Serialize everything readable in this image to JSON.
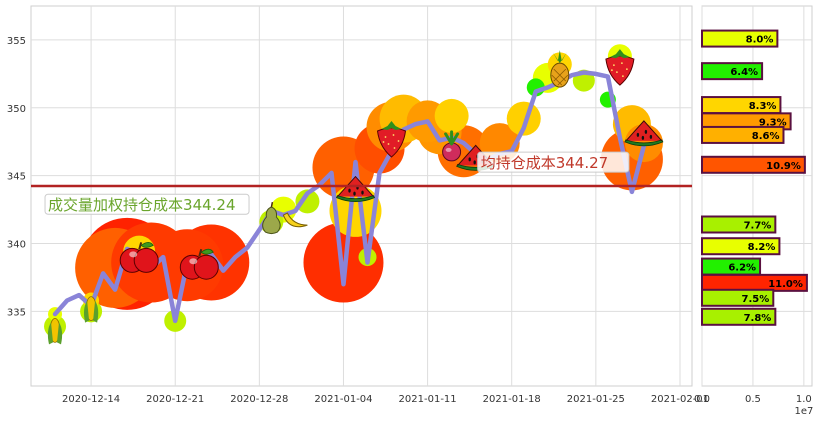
{
  "chart_data": [
    {
      "type": "line",
      "x_ticks": [
        "2020-12-14",
        "2020-12-21",
        "2020-12-28",
        "2021-01-04",
        "2021-01-11",
        "2021-01-18",
        "2021-01-25",
        "2021-02-01"
      ],
      "y_ticks": [
        335,
        340,
        345,
        350,
        355
      ],
      "xlim": [
        "2020-12-09",
        "2021-02-02"
      ],
      "ylim": [
        329.5,
        357.5
      ],
      "grid": true,
      "series": [
        {
          "color": "#8a84d8",
          "points": [
            [
              "2020-12-11",
              334.8
            ],
            [
              "2020-12-12",
              335.8
            ],
            [
              "2020-12-13",
              336.2
            ],
            [
              "2020-12-14",
              335.4
            ],
            [
              "2020-12-15",
              337.8
            ],
            [
              "2020-12-16",
              336.6
            ],
            [
              "2020-12-17",
              339.6
            ],
            [
              "2020-12-18",
              339.2
            ],
            [
              "2020-12-19",
              338.2
            ],
            [
              "2020-12-20",
              339.0
            ],
            [
              "2020-12-21",
              334.3
            ],
            [
              "2020-12-22",
              338.6
            ],
            [
              "2020-12-23",
              338.4
            ],
            [
              "2020-12-24",
              339.2
            ],
            [
              "2020-12-25",
              338.0
            ],
            [
              "2020-12-26",
              339.0
            ],
            [
              "2020-12-27",
              339.7
            ],
            [
              "2020-12-28",
              341.0
            ],
            [
              "2020-12-29",
              342.4
            ],
            [
              "2020-12-30",
              342.1
            ],
            [
              "2020-12-31",
              342.4
            ],
            [
              "2021-01-01",
              343.7
            ],
            [
              "2021-01-02",
              344.3
            ],
            [
              "2021-01-03",
              345.2
            ],
            [
              "2021-01-04",
              337.0
            ],
            [
              "2021-01-05",
              346.0
            ],
            [
              "2021-01-06",
              338.6
            ],
            [
              "2021-01-07",
              345.2
            ],
            [
              "2021-01-08",
              346.8
            ],
            [
              "2021-01-09",
              348.4
            ],
            [
              "2021-01-10",
              348.8
            ],
            [
              "2021-01-11",
              349.0
            ],
            [
              "2021-01-12",
              347.6
            ],
            [
              "2021-01-13",
              347.8
            ],
            [
              "2021-01-14",
              347.4
            ],
            [
              "2021-01-15",
              346.6
            ],
            [
              "2021-01-16",
              346.2
            ],
            [
              "2021-01-17",
              346.6
            ],
            [
              "2021-01-18",
              346.8
            ],
            [
              "2021-01-19",
              348.5
            ],
            [
              "2021-01-20",
              351.2
            ],
            [
              "2021-01-21",
              351.5
            ],
            [
              "2021-01-22",
              351.9
            ],
            [
              "2021-01-23",
              352.4
            ],
            [
              "2021-01-24",
              352.6
            ],
            [
              "2021-01-25",
              352.5
            ],
            [
              "2021-01-26",
              352.3
            ],
            [
              "2021-01-27",
              347.8
            ],
            [
              "2021-01-28",
              343.8
            ],
            [
              "2021-01-29",
              347.2
            ]
          ]
        }
      ],
      "bubbles": [
        {
          "date": "2020-12-11",
          "price": 333.9,
          "size": 11,
          "color": "#bff000"
        },
        {
          "date": "2020-12-11",
          "price": 334.8,
          "size": 7,
          "color": "#e8ff00"
        },
        {
          "date": "2020-12-14",
          "price": 335.0,
          "size": 11,
          "color": "#bff000"
        },
        {
          "date": "2020-12-14",
          "price": 335.8,
          "size": 8,
          "color": "#ffd600"
        },
        {
          "date": "2020-12-16",
          "price": 338.2,
          "size": 40,
          "color": "#ff6000"
        },
        {
          "date": "2020-12-17",
          "price": 338.5,
          "size": 46,
          "color": "#ff2200"
        },
        {
          "date": "2020-12-18",
          "price": 339.4,
          "size": 16,
          "color": "#ffd600"
        },
        {
          "date": "2020-12-19",
          "price": 338.6,
          "size": 40,
          "color": "#ff3a00"
        },
        {
          "date": "2020-12-21",
          "price": 334.3,
          "size": 11,
          "color": "#bff000"
        },
        {
          "date": "2020-12-22",
          "price": 338.4,
          "size": 36,
          "color": "#ff3a00"
        },
        {
          "date": "2020-12-24",
          "price": 338.6,
          "size": 38,
          "color": "#ff3300"
        },
        {
          "date": "2020-12-29",
          "price": 341.6,
          "size": 12,
          "color": "#bff000"
        },
        {
          "date": "2020-12-30",
          "price": 342.5,
          "size": 13,
          "color": "#e8ff00"
        },
        {
          "date": "2021-01-01",
          "price": 343.1,
          "size": 12,
          "color": "#bff000"
        },
        {
          "date": "2021-01-04",
          "price": 338.6,
          "size": 40,
          "color": "#ff2e00"
        },
        {
          "date": "2021-01-04",
          "price": 345.6,
          "size": 31,
          "color": "#ff6000"
        },
        {
          "date": "2021-01-05",
          "price": 342.4,
          "size": 26,
          "color": "#ffd600"
        },
        {
          "date": "2021-01-06",
          "price": 339.0,
          "size": 9,
          "color": "#bff000"
        },
        {
          "date": "2021-01-07",
          "price": 347.0,
          "size": 25,
          "color": "#ff4e00"
        },
        {
          "date": "2021-01-08",
          "price": 348.6,
          "size": 25,
          "color": "#ff8c00"
        },
        {
          "date": "2021-01-09",
          "price": 349.2,
          "size": 24,
          "color": "#ffbb00"
        },
        {
          "date": "2021-01-11",
          "price": 349.0,
          "size": 21,
          "color": "#ff9a00"
        },
        {
          "date": "2021-01-12",
          "price": 348.2,
          "size": 22,
          "color": "#ff9500"
        },
        {
          "date": "2021-01-13",
          "price": 349.4,
          "size": 17,
          "color": "#ffd000"
        },
        {
          "date": "2021-01-14",
          "price": 346.8,
          "size": 26,
          "color": "#ff6f00"
        },
        {
          "date": "2021-01-17",
          "price": 347.4,
          "size": 20,
          "color": "#ff8800"
        },
        {
          "date": "2021-01-19",
          "price": 349.2,
          "size": 17,
          "color": "#ffd000"
        },
        {
          "date": "2021-01-20",
          "price": 351.5,
          "size": 9,
          "color": "#22f000"
        },
        {
          "date": "2021-01-21",
          "price": 352.2,
          "size": 15,
          "color": "#e8ff00"
        },
        {
          "date": "2021-01-22",
          "price": 353.2,
          "size": 12,
          "color": "#ffd600"
        },
        {
          "date": "2021-01-24",
          "price": 352.0,
          "size": 11,
          "color": "#bff000"
        },
        {
          "date": "2021-01-26",
          "price": 350.6,
          "size": 8,
          "color": "#22f000"
        },
        {
          "date": "2021-01-27",
          "price": 353.8,
          "size": 12,
          "color": "#e8ff00"
        },
        {
          "date": "2021-01-28",
          "price": 348.8,
          "size": 19,
          "color": "#ffbb00"
        },
        {
          "date": "2021-01-28",
          "price": 346.2,
          "size": 31,
          "color": "#ff6000"
        },
        {
          "date": "2021-01-29",
          "price": 347.4,
          "size": 19,
          "color": "#ff8c00"
        }
      ],
      "fruit_markers": [
        {
          "date": "2020-12-11",
          "price": 333.6,
          "icon": "corn-icon"
        },
        {
          "date": "2020-12-14",
          "price": 335.2,
          "icon": "corn-icon"
        },
        {
          "date": "2020-12-18",
          "price": 338.9,
          "icon": "apple-icon"
        },
        {
          "date": "2020-12-23",
          "price": 338.4,
          "icon": "apple-icon"
        },
        {
          "date": "2020-12-29",
          "price": 341.8,
          "icon": "pear-icon"
        },
        {
          "date": "2020-12-31",
          "price": 341.8,
          "icon": "banana-icon"
        },
        {
          "date": "2021-01-05",
          "price": 343.9,
          "icon": "watermelon-slice-icon"
        },
        {
          "date": "2021-01-08",
          "price": 347.7,
          "icon": "strawberry-icon"
        },
        {
          "date": "2021-01-13",
          "price": 346.9,
          "icon": "radish-icon"
        },
        {
          "date": "2021-01-15",
          "price": 346.2,
          "icon": "watermelon-slice-icon"
        },
        {
          "date": "2021-01-22",
          "price": 352.7,
          "icon": "pineapple-icon"
        },
        {
          "date": "2021-01-27",
          "price": 353.0,
          "icon": "strawberry-icon"
        },
        {
          "date": "2021-01-29",
          "price": 348.0,
          "icon": "watermelon-slice-icon"
        }
      ],
      "reference_line": {
        "value": 344.24,
        "color": "#b22222"
      },
      "annotations": [
        {
          "text": "成交量加权持仓成本344.24",
          "date": "2020-12-11",
          "price": 342.6,
          "color": "#6aa52c"
        },
        {
          "text": "均持仓成本344.27",
          "date": "2021-01-16",
          "price": 345.7,
          "color": "#c0392b"
        }
      ]
    },
    {
      "type": "bar",
      "orientation": "horizontal",
      "categories": [
        355.1,
        352.7,
        350.2,
        349.0,
        348.0,
        345.8,
        341.4,
        339.8,
        338.3,
        337.1,
        336.0,
        334.6
      ],
      "values": [
        7400000.0,
        5900000.0,
        7700000.0,
        8700000.0,
        8000000.0,
        10100000.0,
        7200000.0,
        7600000.0,
        5700000.0,
        10300000.0,
        7000000.0,
        7200000.0
      ],
      "labels": [
        "8.0%",
        "6.4%",
        "8.3%",
        "9.3%",
        "8.6%",
        "10.9%",
        "7.7%",
        "8.2%",
        "6.2%",
        "11.0%",
        "7.5%",
        "7.8%"
      ],
      "colors": [
        "#e8ff00",
        "#22f000",
        "#ffd600",
        "#ff9a00",
        "#ffb000",
        "#ff5500",
        "#a8f000",
        "#e8ff00",
        "#22f000",
        "#ff2400",
        "#a8f000",
        "#a8f000"
      ],
      "x_ticks": [
        "0.0",
        "0.5",
        "1.0"
      ],
      "x_offset_label": "1e7",
      "xlim": [
        0,
        10800000.0
      ]
    }
  ]
}
